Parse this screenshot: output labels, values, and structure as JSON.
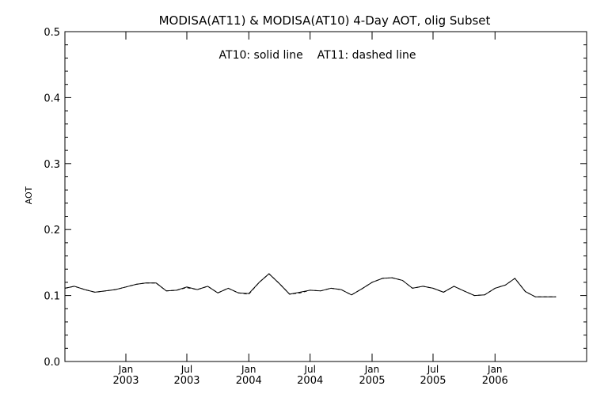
{
  "chart_data": {
    "type": "line",
    "title": "MODISA(AT11) & MODISA(AT10) 4-Day AOT, olig Subset",
    "annotation": "AT10: solid line    AT11: dashed line",
    "ylabel": "AOT",
    "xlabel": "",
    "x_axis_type": "date",
    "xlim": [
      "2002-07-04",
      "2006-09-30"
    ],
    "ylim": [
      0.0,
      0.5
    ],
    "yticks": [
      "0.0",
      "0.1",
      "0.2",
      "0.3",
      "0.4",
      "0.5"
    ],
    "xticks": [
      {
        "date": "2003-01-01",
        "label1": "Jan",
        "label2": "2003"
      },
      {
        "date": "2003-07-01",
        "label1": "Jul",
        "label2": "2003"
      },
      {
        "date": "2004-01-01",
        "label1": "Jan",
        "label2": "2004"
      },
      {
        "date": "2004-07-01",
        "label1": "Jul",
        "label2": "2004"
      },
      {
        "date": "2005-01-01",
        "label1": "Jan",
        "label2": "2005"
      },
      {
        "date": "2005-07-01",
        "label1": "Jul",
        "label2": "2005"
      },
      {
        "date": "2006-01-01",
        "label1": "Jan",
        "label2": "2006"
      }
    ],
    "grid": false,
    "series": [
      {
        "name": "AT10",
        "style": "solid",
        "color": "#000000",
        "x": [
          "2002-07-04",
          "2002-08-01",
          "2002-09-01",
          "2002-10-01",
          "2002-11-01",
          "2002-12-01",
          "2003-01-01",
          "2003-02-01",
          "2003-03-01",
          "2003-04-01",
          "2003-05-01",
          "2003-06-01",
          "2003-07-01",
          "2003-08-01",
          "2003-09-01",
          "2003-10-01",
          "2003-11-01",
          "2003-12-01",
          "2004-01-01",
          "2004-02-01",
          "2004-03-01",
          "2004-04-01",
          "2004-05-01",
          "2004-06-01",
          "2004-07-01",
          "2004-08-01",
          "2004-09-01",
          "2004-10-01",
          "2004-11-01",
          "2004-12-01",
          "2005-01-01",
          "2005-02-01",
          "2005-03-01",
          "2005-04-01",
          "2005-05-01",
          "2005-06-01",
          "2005-07-01",
          "2005-08-01",
          "2005-09-01",
          "2005-10-01",
          "2005-11-01",
          "2005-12-01",
          "2006-01-01",
          "2006-02-01",
          "2006-03-01",
          "2006-04-01",
          "2006-05-01",
          "2006-06-01",
          "2006-07-01"
        ],
        "y": [
          0.111,
          0.114,
          0.109,
          0.105,
          0.107,
          0.109,
          0.113,
          0.117,
          0.119,
          0.119,
          0.107,
          0.108,
          0.113,
          0.109,
          0.114,
          0.104,
          0.111,
          0.104,
          0.103,
          0.12,
          0.133,
          0.118,
          0.102,
          0.105,
          0.108,
          0.107,
          0.111,
          0.109,
          0.101,
          0.11,
          0.12,
          0.126,
          0.127,
          0.123,
          0.111,
          0.114,
          0.111,
          0.105,
          0.114,
          0.107,
          0.1,
          0.101,
          0.111,
          0.116,
          0.126,
          0.106,
          0.098,
          0.098,
          0.098
        ]
      },
      {
        "name": "AT11",
        "style": "dashed",
        "color": "#000000",
        "x": [
          "2002-07-04",
          "2002-08-01",
          "2002-09-01",
          "2002-10-01",
          "2002-11-01",
          "2002-12-01",
          "2003-01-01",
          "2003-02-01",
          "2003-03-01",
          "2003-04-01",
          "2003-05-01",
          "2003-06-01",
          "2003-07-01",
          "2003-08-01",
          "2003-09-01",
          "2003-10-01",
          "2003-11-01",
          "2003-12-01",
          "2004-01-01",
          "2004-02-01",
          "2004-03-01",
          "2004-04-01",
          "2004-05-01",
          "2004-06-01",
          "2004-07-01",
          "2004-08-01",
          "2004-09-01",
          "2004-10-01",
          "2004-11-01",
          "2004-12-01",
          "2005-01-01",
          "2005-02-01",
          "2005-03-01",
          "2005-04-01",
          "2005-05-01",
          "2005-06-01",
          "2005-07-01",
          "2005-08-01",
          "2005-09-01",
          "2005-10-01",
          "2005-11-01",
          "2005-12-01",
          "2006-01-01",
          "2006-02-01",
          "2006-03-01",
          "2006-04-01",
          "2006-05-01",
          "2006-06-01",
          "2006-07-01"
        ],
        "y": [
          0.111,
          0.114,
          0.109,
          0.105,
          0.107,
          0.109,
          0.113,
          0.117,
          0.119,
          0.119,
          0.107,
          0.108,
          0.112,
          0.109,
          0.114,
          0.104,
          0.111,
          0.104,
          0.102,
          0.12,
          0.133,
          0.118,
          0.102,
          0.104,
          0.108,
          0.107,
          0.111,
          0.109,
          0.101,
          0.11,
          0.12,
          0.126,
          0.127,
          0.123,
          0.111,
          0.114,
          0.111,
          0.105,
          0.114,
          0.107,
          0.1,
          0.101,
          0.111,
          0.116,
          0.126,
          0.106,
          0.098,
          0.098,
          0.098
        ]
      }
    ]
  }
}
